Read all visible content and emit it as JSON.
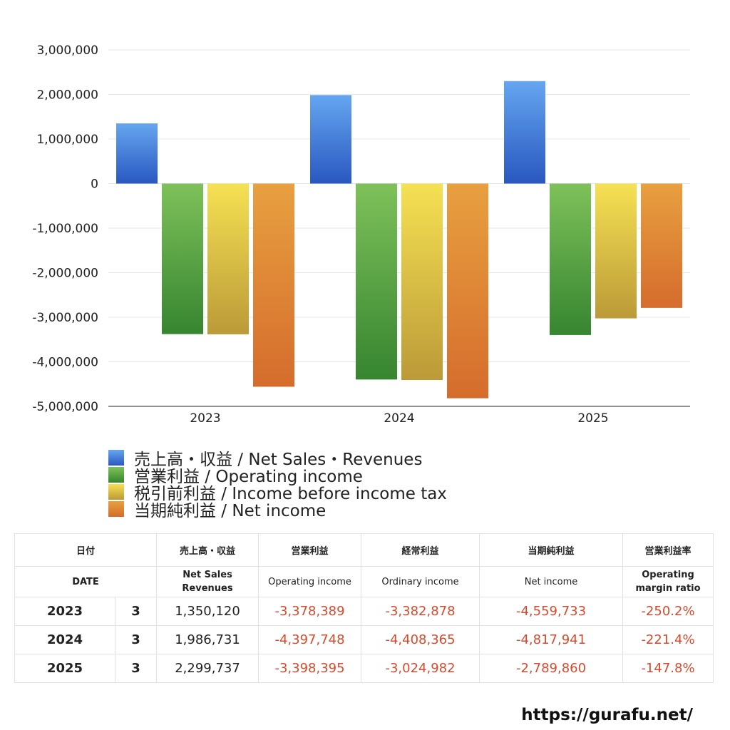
{
  "chart_data": {
    "type": "bar",
    "categories": [
      "2023",
      "2024",
      "2025"
    ],
    "series": [
      {
        "name": "売上高・収益 / Net Sales・Revenues",
        "values": [
          1350120,
          1986731,
          2299737
        ],
        "color_top": "#65a6f0",
        "color_bottom": "#2958c0"
      },
      {
        "name": "営業利益 / Operating income",
        "values": [
          -3378389,
          -4397748,
          -3398395
        ],
        "color_top": "#7ec15a",
        "color_bottom": "#368530"
      },
      {
        "name": "税引前利益 / Income before income tax",
        "values": [
          -3382878,
          -4408365,
          -3024982
        ],
        "color_top": "#f5e153",
        "color_bottom": "#bb9a38"
      },
      {
        "name": "当期純利益 / Net income",
        "values": [
          -4559733,
          -4817941,
          -2789860
        ],
        "color_top": "#e8a040",
        "color_bottom": "#d56c2c"
      }
    ],
    "ylim": [
      -5000000,
      3000000
    ],
    "yticks": [
      3000000,
      2000000,
      1000000,
      0,
      -1000000,
      -2000000,
      -3000000,
      -4000000,
      -5000000
    ],
    "ytick_labels": [
      "3,000,000",
      "2,000,000",
      "1,000,000",
      "0",
      "-1,000,000",
      "-2,000,000",
      "-3,000,000",
      "-4,000,000",
      "-5,000,000"
    ],
    "grid": true,
    "legend_position": "bottom-left"
  },
  "table": {
    "header_jp": [
      "日付",
      "",
      "売上高・収益",
      "営業利益",
      "経常利益",
      "当期純利益",
      "営業利益率"
    ],
    "header_en": [
      "DATE",
      "",
      "Net Sales\nRevenues",
      "Operating income",
      "Ordinary income",
      "Net income",
      "Operating\nmargin ratio"
    ],
    "rows": [
      {
        "year": "2023",
        "month": "3",
        "sales": "1,350,120",
        "operating": "-3,378,389",
        "ordinary": "-3,382,878",
        "net": "-4,559,733",
        "margin": "-250.2%"
      },
      {
        "year": "2024",
        "month": "3",
        "sales": "1,986,731",
        "operating": "-4,397,748",
        "ordinary": "-4,408,365",
        "net": "-4,817,941",
        "margin": "-221.4%"
      },
      {
        "year": "2025",
        "month": "3",
        "sales": "2,299,737",
        "operating": "-3,398,395",
        "ordinary": "-3,024,982",
        "net": "-2,789,860",
        "margin": "-147.8%"
      }
    ]
  },
  "footer": {
    "url": "https://gurafu.net/"
  }
}
